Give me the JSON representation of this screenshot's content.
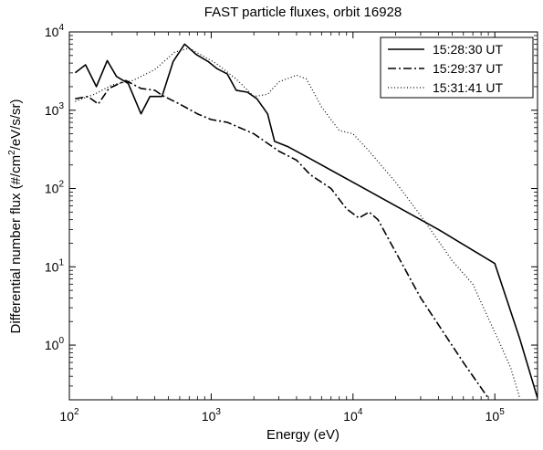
{
  "chart_data": {
    "type": "line",
    "title": "FAST particle fluxes, orbit 16928",
    "xlabel": "Energy (eV)",
    "ylabel_parts": [
      "Differential number flux (#/cm",
      "2",
      "/eV/s/sr)"
    ],
    "x_scale": "log",
    "y_scale": "log",
    "xlim": [
      100,
      200000
    ],
    "ylim": [
      0.2,
      10000
    ],
    "x_ticks": [
      {
        "value": 100,
        "base": "10",
        "exp": "2"
      },
      {
        "value": 1000,
        "base": "10",
        "exp": "3"
      },
      {
        "value": 10000,
        "base": "10",
        "exp": "4"
      },
      {
        "value": 100000,
        "base": "10",
        "exp": "5"
      }
    ],
    "y_ticks": [
      {
        "value": 1,
        "base": "10",
        "exp": "0"
      },
      {
        "value": 10,
        "base": "10",
        "exp": "1"
      },
      {
        "value": 100,
        "base": "10",
        "exp": "2"
      },
      {
        "value": 1000,
        "base": "10",
        "exp": "3"
      },
      {
        "value": 10000,
        "base": "10",
        "exp": "4"
      }
    ],
    "legend_position": "top-right",
    "grid": false,
    "series": [
      {
        "name": "15:28:30 UT",
        "style": "solid",
        "points": [
          [
            110,
            3000
          ],
          [
            130,
            3800
          ],
          [
            155,
            2000
          ],
          [
            185,
            4300
          ],
          [
            215,
            2700
          ],
          [
            260,
            2200
          ],
          [
            320,
            900
          ],
          [
            370,
            1500
          ],
          [
            450,
            1500
          ],
          [
            540,
            4200
          ],
          [
            650,
            7000
          ],
          [
            780,
            5200
          ],
          [
            950,
            4200
          ],
          [
            1100,
            3400
          ],
          [
            1300,
            2900
          ],
          [
            1500,
            1800
          ],
          [
            1800,
            1700
          ],
          [
            2100,
            1400
          ],
          [
            2500,
            900
          ],
          [
            2800,
            400
          ],
          [
            3500,
            340
          ],
          [
            5000,
            240
          ],
          [
            10000,
            120
          ],
          [
            20000,
            60
          ],
          [
            40000,
            30
          ],
          [
            100000,
            11
          ],
          [
            150000,
            1.2
          ],
          [
            200000,
            0.21
          ]
        ]
      },
      {
        "name": "15:29:37 UT",
        "style": "dashdot",
        "points": [
          [
            110,
            1400
          ],
          [
            135,
            1500
          ],
          [
            160,
            1200
          ],
          [
            190,
            1900
          ],
          [
            250,
            2400
          ],
          [
            320,
            1900
          ],
          [
            400,
            1800
          ],
          [
            450,
            1550
          ],
          [
            600,
            1200
          ],
          [
            800,
            900
          ],
          [
            1000,
            760
          ],
          [
            1300,
            700
          ],
          [
            2000,
            500
          ],
          [
            3000,
            300
          ],
          [
            4000,
            230
          ],
          [
            5000,
            150
          ],
          [
            7000,
            100
          ],
          [
            9000,
            55
          ],
          [
            11000,
            42
          ],
          [
            13000,
            50
          ],
          [
            15000,
            40
          ],
          [
            30000,
            4
          ],
          [
            60000,
            0.6
          ],
          [
            90000,
            0.21
          ]
        ]
      },
      {
        "name": "15:31:41 UT",
        "style": "dotted",
        "points": [
          [
            110,
            1300
          ],
          [
            150,
            1600
          ],
          [
            200,
            2100
          ],
          [
            280,
            2400
          ],
          [
            400,
            3300
          ],
          [
            550,
            5500
          ],
          [
            700,
            6200
          ],
          [
            900,
            4800
          ],
          [
            1100,
            3900
          ],
          [
            1500,
            2500
          ],
          [
            2000,
            1500
          ],
          [
            2500,
            1600
          ],
          [
            3000,
            2300
          ],
          [
            4000,
            2800
          ],
          [
            4700,
            2500
          ],
          [
            6000,
            1100
          ],
          [
            8000,
            550
          ],
          [
            10000,
            500
          ],
          [
            13000,
            300
          ],
          [
            20000,
            120
          ],
          [
            30000,
            45
          ],
          [
            50000,
            12
          ],
          [
            70000,
            6
          ],
          [
            90000,
            2.2
          ],
          [
            110000,
            1.0
          ],
          [
            130000,
            0.5
          ],
          [
            150000,
            0.21
          ]
        ]
      }
    ]
  }
}
